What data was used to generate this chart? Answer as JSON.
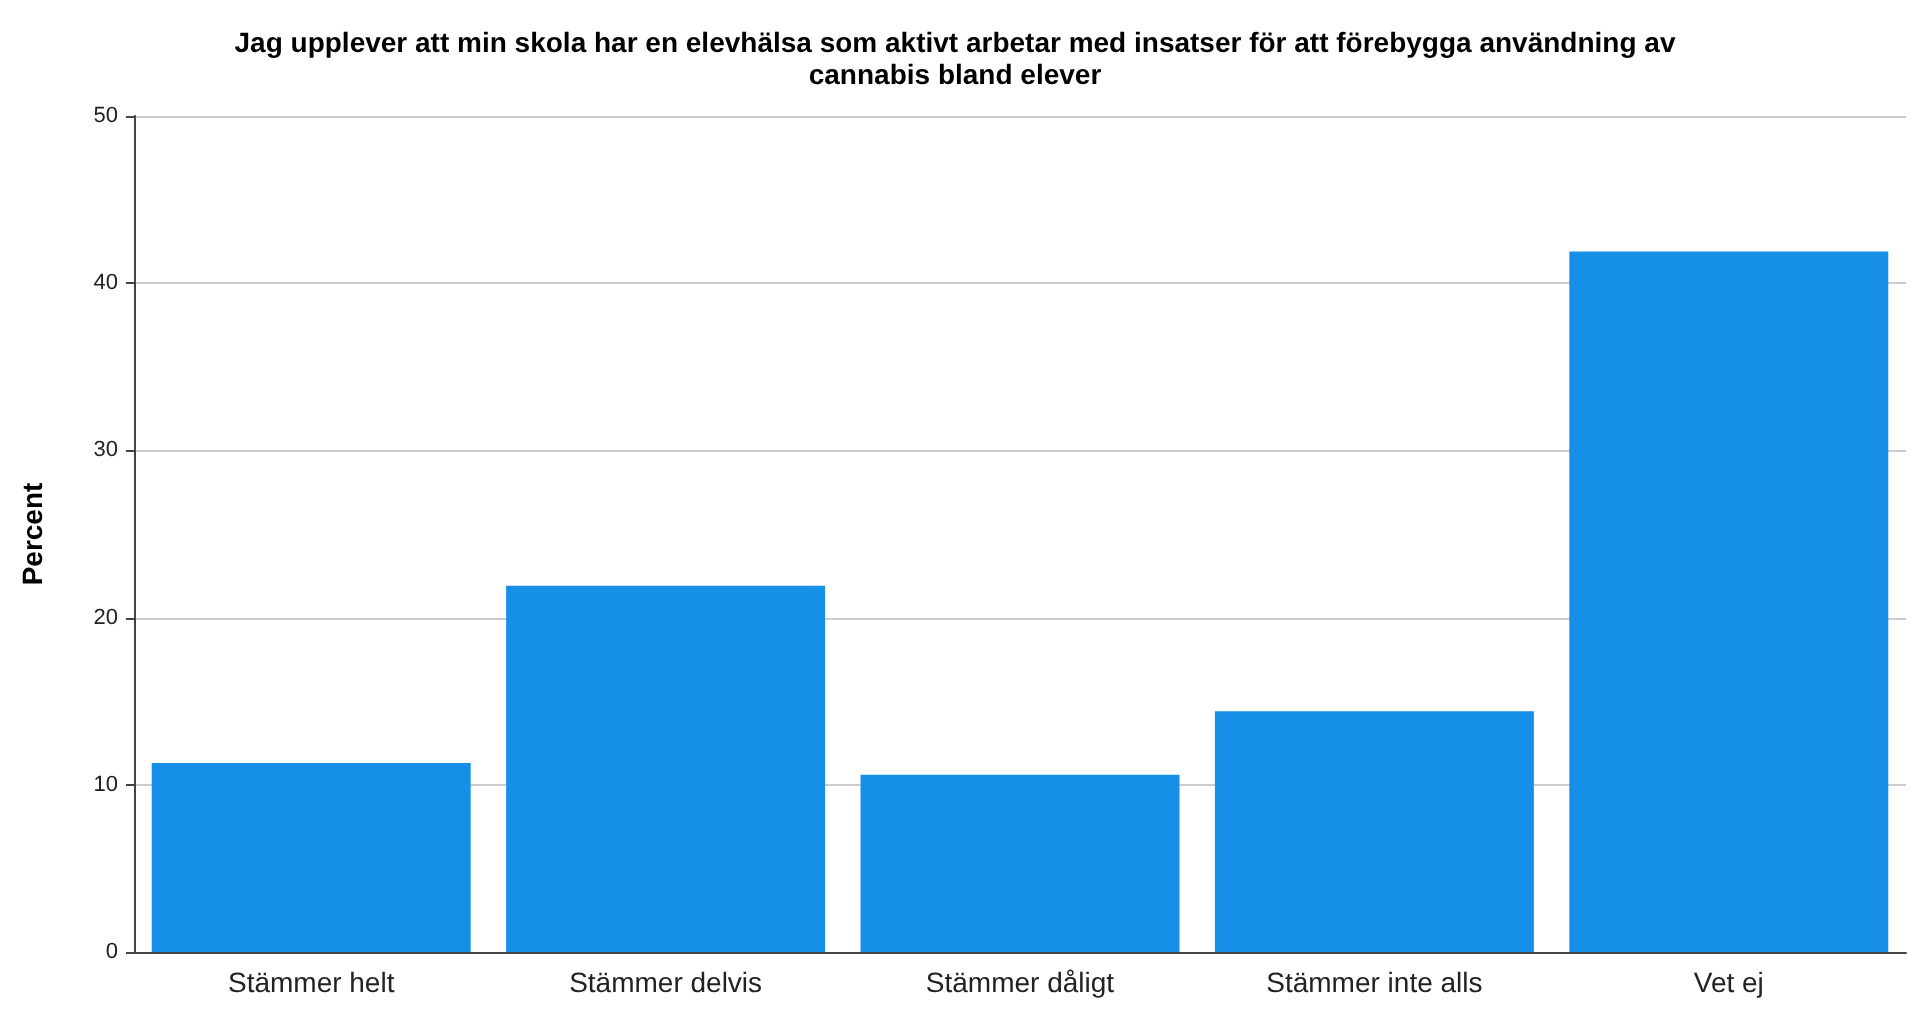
{
  "chart_data": {
    "type": "bar",
    "title": "Jag upplever att min skola har en elevhälsa som aktivt arbetar med insatser för att förebygga användning av\ncannabis bland elever",
    "ylabel": "Percent",
    "categories": [
      "Stämmer helt",
      "Stämmer delvis",
      "Stämmer dåligt",
      "Stämmer inte alls",
      "Vet ej"
    ],
    "values": [
      11.3,
      21.9,
      10.6,
      14.4,
      41.9
    ],
    "color": "#1690e6",
    "ylim": [
      0,
      50
    ],
    "yticks": [
      0,
      10,
      20,
      30,
      40,
      50
    ],
    "grid": "y"
  }
}
